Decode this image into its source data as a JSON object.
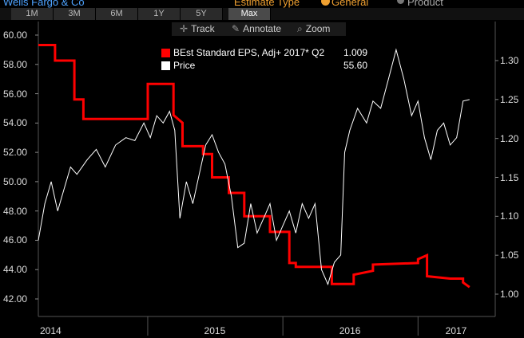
{
  "header": {
    "ticker": "Wells Fargo & Co",
    "estimate_type_label": "Estimate Type",
    "option_general": "General",
    "option_product": "Product"
  },
  "ranges": [
    "1M",
    "3M",
    "6M",
    "1Y",
    "5Y",
    "Max"
  ],
  "active_range": "Max",
  "tools": {
    "track": "Track",
    "annotate": "Annotate",
    "zoom": "Zoom"
  },
  "legend": {
    "eps_label": "BEst Standard EPS, Adj+ 2017* Q2",
    "eps_value": "1.009",
    "price_label": "Price",
    "price_value": "55.60"
  },
  "colors": {
    "eps": "#ff0000",
    "price": "#ffffff",
    "accent": "#f0a030",
    "ticker": "#4ea3ff"
  },
  "chart_data": {
    "type": "line",
    "title": "",
    "xlabel": "",
    "x_ticks": [
      "2014",
      "2015",
      "2016",
      "2017"
    ],
    "y_left_ticks": [
      "60.00",
      "58.00",
      "56.00",
      "54.00",
      "52.00",
      "50.00",
      "48.00",
      "46.00",
      "44.00",
      "42.00"
    ],
    "y_right_ticks": [
      "1.30",
      "1.25",
      "1.20",
      "1.15",
      "1.10",
      "1.05",
      "1.00"
    ],
    "ylim_left": [
      41.5,
      60.5
    ],
    "ylim_right": [
      0.985,
      1.335
    ],
    "xlim": [
      2014.0,
      2017.55
    ],
    "series": [
      {
        "name": "BEst Standard EPS, Adj+ 2017* Q2",
        "axis": "right",
        "values": [
          [
            2014.0,
            1.32
          ],
          [
            2014.13,
            1.32
          ],
          [
            2014.13,
            1.3
          ],
          [
            2014.28,
            1.3
          ],
          [
            2014.28,
            1.25
          ],
          [
            2014.35,
            1.25
          ],
          [
            2014.35,
            1.225
          ],
          [
            2014.85,
            1.225
          ],
          [
            2014.85,
            1.27
          ],
          [
            2015.05,
            1.27
          ],
          [
            2015.05,
            1.23
          ],
          [
            2015.12,
            1.22
          ],
          [
            2015.12,
            1.19
          ],
          [
            2015.28,
            1.19
          ],
          [
            2015.28,
            1.18
          ],
          [
            2015.35,
            1.18
          ],
          [
            2015.35,
            1.15
          ],
          [
            2015.48,
            1.15
          ],
          [
            2015.48,
            1.13
          ],
          [
            2015.6,
            1.13
          ],
          [
            2015.6,
            1.1
          ],
          [
            2015.8,
            1.1
          ],
          [
            2015.8,
            1.08
          ],
          [
            2015.95,
            1.08
          ],
          [
            2015.95,
            1.04
          ],
          [
            2016.0,
            1.04
          ],
          [
            2016.0,
            1.035
          ],
          [
            2016.28,
            1.035
          ],
          [
            2016.28,
            1.013
          ],
          [
            2016.45,
            1.013
          ],
          [
            2016.45,
            1.025
          ],
          [
            2016.6,
            1.03
          ],
          [
            2016.6,
            1.038
          ],
          [
            2016.95,
            1.04
          ],
          [
            2016.95,
            1.045
          ],
          [
            2017.02,
            1.05
          ],
          [
            2017.02,
            1.023
          ],
          [
            2017.2,
            1.02
          ],
          [
            2017.3,
            1.02
          ],
          [
            2017.3,
            1.015
          ],
          [
            2017.35,
            1.009
          ]
        ]
      },
      {
        "name": "Price",
        "axis": "left",
        "values": [
          [
            2014.0,
            46.0
          ],
          [
            2014.05,
            48.5
          ],
          [
            2014.1,
            50.0
          ],
          [
            2014.15,
            48.0
          ],
          [
            2014.2,
            49.5
          ],
          [
            2014.25,
            51.0
          ],
          [
            2014.3,
            50.5
          ],
          [
            2014.38,
            51.5
          ],
          [
            2014.45,
            52.2
          ],
          [
            2014.52,
            51.0
          ],
          [
            2014.6,
            52.5
          ],
          [
            2014.68,
            53.0
          ],
          [
            2014.75,
            52.8
          ],
          [
            2014.82,
            54.0
          ],
          [
            2014.87,
            53.0
          ],
          [
            2014.92,
            54.5
          ],
          [
            2014.97,
            54.0
          ],
          [
            2015.02,
            54.8
          ],
          [
            2015.06,
            53.5
          ],
          [
            2015.1,
            47.5
          ],
          [
            2015.15,
            50.0
          ],
          [
            2015.2,
            48.5
          ],
          [
            2015.25,
            50.5
          ],
          [
            2015.3,
            52.5
          ],
          [
            2015.35,
            53.2
          ],
          [
            2015.4,
            52.0
          ],
          [
            2015.45,
            51.2
          ],
          [
            2015.5,
            49.0
          ],
          [
            2015.55,
            45.5
          ],
          [
            2015.6,
            45.8
          ],
          [
            2015.65,
            48.5
          ],
          [
            2015.7,
            46.5
          ],
          [
            2015.75,
            47.5
          ],
          [
            2015.8,
            48.5
          ],
          [
            2015.85,
            46.0
          ],
          [
            2015.9,
            47.0
          ],
          [
            2015.95,
            48.0
          ],
          [
            2016.0,
            46.5
          ],
          [
            2016.05,
            48.5
          ],
          [
            2016.1,
            47.5
          ],
          [
            2016.15,
            48.5
          ],
          [
            2016.2,
            44.0
          ],
          [
            2016.25,
            43.0
          ],
          [
            2016.3,
            44.5
          ],
          [
            2016.35,
            45.0
          ],
          [
            2016.38,
            52.0
          ],
          [
            2016.42,
            53.5
          ],
          [
            2016.48,
            55.0
          ],
          [
            2016.55,
            54.0
          ],
          [
            2016.6,
            55.5
          ],
          [
            2016.66,
            55.0
          ],
          [
            2016.72,
            57.0
          ],
          [
            2016.78,
            59.0
          ],
          [
            2016.84,
            57.0
          ],
          [
            2016.9,
            54.5
          ],
          [
            2016.95,
            55.5
          ],
          [
            2017.0,
            53.0
          ],
          [
            2017.05,
            51.5
          ],
          [
            2017.1,
            53.5
          ],
          [
            2017.15,
            54.0
          ],
          [
            2017.2,
            52.5
          ],
          [
            2017.25,
            53.0
          ],
          [
            2017.3,
            55.5
          ],
          [
            2017.35,
            55.6
          ]
        ]
      }
    ]
  }
}
